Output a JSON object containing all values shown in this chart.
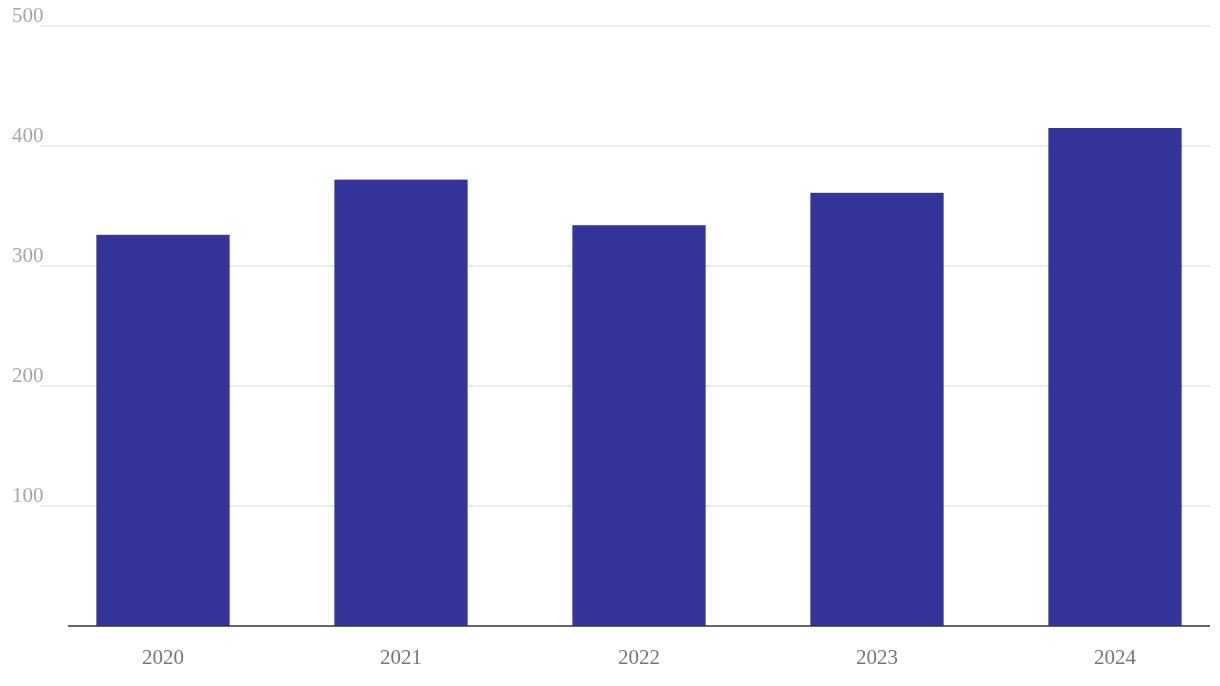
{
  "chart_data": {
    "type": "bar",
    "categories": [
      "2020",
      "2021",
      "2022",
      "2023",
      "2024"
    ],
    "values": [
      326,
      372,
      334,
      361,
      415
    ],
    "color": "#353599",
    "ylim": [
      0,
      500
    ],
    "yticks": [
      100,
      200,
      300,
      400,
      500
    ],
    "grid": "y"
  }
}
